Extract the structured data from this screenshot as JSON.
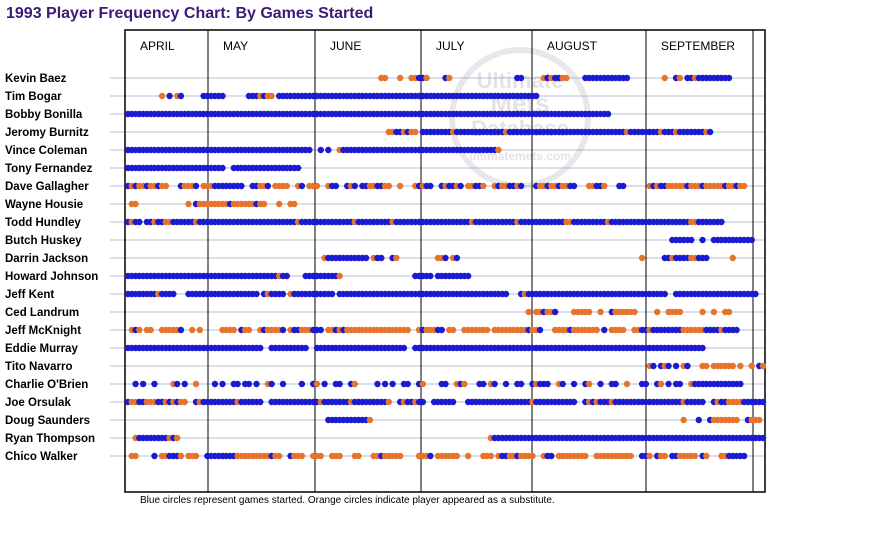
{
  "title": "1993 Player Frequency Chart: By Games Started",
  "caption": "Blue circles represent games started. Orange circles indicate player appeared as a substitute.",
  "watermark": [
    "Ultimate",
    "Mets",
    "Database",
    "ultimatemets.com"
  ],
  "colors": {
    "started": "#1a1ad0",
    "substitute": "#e8742c",
    "rowline": "#9aa6c8",
    "title": "#3b1a78"
  },
  "chart_data": {
    "type": "scatter",
    "title": "1993 Player Frequency Chart: By Games Started",
    "months": [
      "APRIL",
      "MAY",
      "JUNE",
      "JULY",
      "AUGUST",
      "SEPTEMBER"
    ],
    "legend": {
      "S": "Blue circles represent games started",
      "O": "Orange circles indicate player appeared as a substitute"
    },
    "games_total": 162,
    "players": [
      {
        "name": "Kevin Baez",
        "segments": [
          [
            67,
            "OO"
          ],
          [
            72,
            "O"
          ],
          [
            75,
            "OOBBO"
          ],
          [
            84,
            "BO"
          ],
          [
            103,
            "BB"
          ],
          [
            110,
            "OBOBBOO"
          ],
          [
            121,
            "BBBBBBBBBBBB"
          ],
          [
            142,
            "O"
          ],
          [
            145,
            "BO"
          ],
          [
            148,
            "BB"
          ],
          [
            150,
            "OBBBBBBBBB"
          ]
        ]
      },
      {
        "name": "Tim Bogar",
        "segments": [
          [
            9,
            "O"
          ],
          [
            11,
            "B"
          ],
          [
            13,
            "OB"
          ],
          [
            20,
            "BBBBBB"
          ],
          [
            32,
            "BBB"
          ],
          [
            35,
            "OBOO"
          ],
          [
            40,
            "BBBBBBBBBBBBBBBBBBBBBBBBBBBBBBBBBBBBBBBBBBBBBBBBBBBBBBBBBBBBBBBBBBBBB"
          ]
        ]
      },
      {
        "name": "Bobby Bonilla",
        "segments": [
          [
            0,
            "BBBBBBBBBBBBBBBBBBBBBBBBBBBBBBBBBBBBBBBBBBBBBBBBBBBBBBBBBBBBBBBBBBBBBBBBBBBBBBBBBBBBBBBBBBBBBBBBBBBBBBBBBBBBBBBBBBBBBBBBBBBBBBBB"
          ]
        ]
      },
      {
        "name": "Jeromy Burnitz",
        "segments": [
          [
            69,
            "OOB"
          ],
          [
            72,
            "BOBOO"
          ],
          [
            78,
            "BBBBBBBBOBBBBBBBBBBBBBOBBBBBBBBBBBBBBBBBBBBBBBBBBBBBBBOBBBBBBBBOBBBOBBBBBBBOB"
          ]
        ]
      },
      {
        "name": "Vince Coleman",
        "segments": [
          [
            0,
            "BBBBBBBBBBBBBBBBBBBBBBBBBBBBBBBBBBBBBBBBBBBBBBBBB"
          ],
          [
            51,
            "B"
          ],
          [
            53,
            "B"
          ],
          [
            56,
            "OBBBBBBBBBBBBBBBBBBBBBBBBBBBBBBBBBBBBBBBBBO"
          ]
        ]
      },
      {
        "name": "Tony Fernandez",
        "segments": [
          [
            0,
            "BBBBBBBBBBBBBBBBBBBBBBBBBB"
          ],
          [
            28,
            "BBBBBBBBBBBBBBBBBB"
          ]
        ]
      },
      {
        "name": "Dave Gallagher",
        "segments": [
          [
            0,
            "BOBOOBOOBOO"
          ],
          [
            14,
            "BOOOB"
          ],
          [
            20,
            "OOOBBBBBBBB"
          ],
          [
            33,
            "BBOOB"
          ],
          [
            39,
            "OOOO"
          ],
          [
            45,
            "OB"
          ],
          [
            48,
            "OOO"
          ],
          [
            53,
            "OBB"
          ],
          [
            58,
            "BOB"
          ],
          [
            62,
            "BBOOBBOO"
          ],
          [
            72,
            "O"
          ],
          [
            76,
            "OBOBB"
          ],
          [
            83,
            "BOBBOB"
          ],
          [
            90,
            "OOBBO"
          ],
          [
            97,
            "OBOOBBOB"
          ],
          [
            108,
            "BOOBOOBOOBB"
          ],
          [
            122,
            "OOBBO"
          ],
          [
            130,
            "BB"
          ],
          [
            138,
            "OBOBBOOOOOBOOOBOOOOOBOOBOO"
          ]
        ]
      },
      {
        "name": "Wayne Housie",
        "segments": [
          [
            1,
            "OO"
          ],
          [
            16,
            "O"
          ],
          [
            18,
            "BOOOOOOOOBOOOOOOBOO"
          ],
          [
            40,
            "O"
          ],
          [
            43,
            "OO"
          ]
        ]
      },
      {
        "name": "Todd Hundley",
        "segments": [
          [
            0,
            "BOBB"
          ],
          [
            5,
            "BBOBB"
          ],
          [
            10,
            "OOBBBBBBOBBBBBBBBBBBBBBBBBBBBBBBBBBOBBBBBBBBBBBBBBOBBBBBBBBBOBBBBBBBBBBBBBBBBBBBBOBBBBBBBBBBBOBBBBBBBBBBBBOOBBBBBBBBBOBBBBBBBBBBBBBBBBBBBBBOOBBBBBBB"
          ]
        ]
      },
      {
        "name": "Butch Huskey",
        "segments": [
          [
            144,
            "BBBBBB"
          ],
          [
            152,
            "B"
          ],
          [
            155,
            "BBBBBBBBBBB"
          ]
        ]
      },
      {
        "name": "Darrin Jackson",
        "segments": [
          [
            52,
            "OBBBBBBBBBBB"
          ],
          [
            65,
            "OBB"
          ],
          [
            70,
            "BO"
          ],
          [
            82,
            "OOB"
          ],
          [
            86,
            "OB"
          ],
          [
            136,
            "O"
          ],
          [
            142,
            "BBOBBBBOOBBB"
          ],
          [
            160,
            "O"
          ]
        ]
      },
      {
        "name": "Howard Johnson",
        "segments": [
          [
            0,
            "BBBBBBBBBBBBBBBBBBBBBBBBBBBBBBBBBBBBBBBBOBB"
          ],
          [
            47,
            "BBBBBBBBB"
          ],
          [
            56,
            "O"
          ],
          [
            76,
            "BBBBB"
          ],
          [
            82,
            "BBBBBBBBB"
          ]
        ]
      },
      {
        "name": "Jeff Kent",
        "segments": [
          [
            0,
            "BBBBBBBBOBBBB"
          ],
          [
            16,
            "BBBBBBBBBBBBBBBBBBB"
          ],
          [
            36,
            "BOBBBB"
          ],
          [
            43,
            "OBBBBBBBBBBB"
          ],
          [
            56,
            "BBBBBBBBBBBBBBBBBBBBBBBBBBBBBBBBBBBBBBBBBBBBB"
          ],
          [
            104,
            "BOBBBBBBBBBBBBBBBBBBBBBBBBBBBBBBBBBBBBB"
          ],
          [
            145,
            "BBBBBBBBBBBBBBBBBBBBBB"
          ]
        ]
      },
      {
        "name": "Ced Landrum",
        "segments": [
          [
            106,
            "O"
          ],
          [
            108,
            "OOBOOB"
          ],
          [
            118,
            "OOOOO"
          ],
          [
            125,
            "O"
          ],
          [
            128,
            "BOOOOOO"
          ],
          [
            140,
            "O"
          ],
          [
            143,
            "OOOO"
          ],
          [
            152,
            "O"
          ],
          [
            155,
            "O"
          ],
          [
            158,
            "OO"
          ]
        ]
      },
      {
        "name": "Jeff McKnight",
        "segments": [
          [
            1,
            "OBO"
          ],
          [
            5,
            "OO"
          ],
          [
            9,
            "OOOOOB"
          ],
          [
            17,
            "O"
          ],
          [
            19,
            "O"
          ],
          [
            25,
            "OOOO"
          ],
          [
            30,
            "BOO"
          ],
          [
            35,
            "OBOOOOB"
          ],
          [
            43,
            "OBBOOOBBB"
          ],
          [
            53,
            "OOBOBOOOOOOOOOOOOOOOOO"
          ],
          [
            77,
            "OBOOOBB"
          ],
          [
            85,
            "OO"
          ],
          [
            89,
            "OOOOOOO"
          ],
          [
            97,
            "OOOOOOOOOBOOB"
          ],
          [
            113,
            "OOOOBOOOOOOO"
          ],
          [
            126,
            "B"
          ],
          [
            128,
            "OOOO"
          ],
          [
            134,
            "OOBBOBBBBBBBBOOOOOOBBBBOBBBB"
          ]
        ]
      },
      {
        "name": "Eddie Murray",
        "segments": [
          [
            0,
            "BBBBBBBBBBBBBBBBBBBBBBBBBBBBBBBBBBBB"
          ],
          [
            38,
            "BBBBBBBBBB"
          ],
          [
            50,
            "BBBBBBBBBBBBBBBBBBBBBBBB"
          ],
          [
            76,
            "BBBBBBBBBBBBBBBBBBBBBBBBBBBBBBBBBBBBBBBBBBBBBBBBBBBBBBBBBBBBBBBBBBBBBBBBBBBBB"
          ]
        ]
      },
      {
        "name": "Tito Navarro",
        "segments": [
          [
            138,
            "OB"
          ],
          [
            141,
            "BOB"
          ],
          [
            145,
            "B"
          ],
          [
            147,
            "OB"
          ],
          [
            152,
            "OO"
          ],
          [
            155,
            "OOOOOO"
          ],
          [
            162,
            "O"
          ],
          [
            165,
            "O"
          ],
          [
            167,
            "BO"
          ]
        ]
      },
      {
        "name": "Charlie O'Brien",
        "segments": [
          [
            2,
            "B"
          ],
          [
            4,
            "B"
          ],
          [
            7,
            "B"
          ],
          [
            12,
            "OB"
          ],
          [
            15,
            "B"
          ],
          [
            18,
            "O"
          ],
          [
            23,
            "B"
          ],
          [
            25,
            "B"
          ],
          [
            28,
            "BB"
          ],
          [
            31,
            "BB"
          ],
          [
            34,
            "B"
          ],
          [
            37,
            "OB"
          ],
          [
            41,
            "B"
          ],
          [
            46,
            "B"
          ],
          [
            49,
            "BO"
          ],
          [
            52,
            "B"
          ],
          [
            55,
            "BB"
          ],
          [
            59,
            "BO"
          ],
          [
            66,
            "B"
          ],
          [
            68,
            "B"
          ],
          [
            70,
            "B"
          ],
          [
            73,
            "BB"
          ],
          [
            77,
            "BO"
          ],
          [
            83,
            "BB"
          ],
          [
            87,
            "OBO"
          ],
          [
            93,
            "BB"
          ],
          [
            96,
            "OB"
          ],
          [
            100,
            "B"
          ],
          [
            103,
            "BB"
          ],
          [
            107,
            "BOBBB"
          ],
          [
            114,
            "OB"
          ],
          [
            118,
            "B"
          ],
          [
            121,
            "BO"
          ],
          [
            125,
            "B"
          ],
          [
            128,
            "BB"
          ],
          [
            132,
            "O"
          ],
          [
            136,
            "BB"
          ],
          [
            140,
            "BO"
          ],
          [
            143,
            "B"
          ],
          [
            145,
            "BB"
          ],
          [
            149,
            "OBBBBBBBBBBBBB"
          ]
        ]
      },
      {
        "name": "Joe Orsulak",
        "segments": [
          [
            0,
            "BOOBBOOOBBOBOBOO"
          ],
          [
            18,
            "BOBBBBBBBBBOBBBBBB"
          ],
          [
            38,
            "BBBBBBBBBBBBBOBBBBBBBOBBBBBBBBBO"
          ],
          [
            72,
            "BOBBOBB"
          ],
          [
            81,
            "BBBBBB"
          ],
          [
            90,
            "BBBBBBBBBBBBBBBBBOBBBBBBBBBBB"
          ],
          [
            121,
            "BOBOBBBOBBBBBBBBBBBBBBBBBBOBBBBB"
          ],
          [
            155,
            "BOBBOOOOBBBBBB"
          ]
        ]
      },
      {
        "name": "Doug Saunders",
        "segments": [
          [
            53,
            "BBBBBBBBBBBO"
          ],
          [
            147,
            "O"
          ],
          [
            151,
            "B"
          ],
          [
            154,
            "BOOOOOOO"
          ],
          [
            164,
            "BOOO"
          ]
        ]
      },
      {
        "name": "Ryan Thompson",
        "segments": [
          [
            2,
            "OBBBBBBBBOBO"
          ],
          [
            96,
            "OBBBBBBBBBBBBBBBBBBBBBBBBBBBBBBBBBBBBBBBBBBBBBBBBBBBBBBBBBBBBBBBBBBBBBBBBB"
          ]
        ]
      },
      {
        "name": "Chico Walker",
        "segments": [
          [
            1,
            "OO"
          ],
          [
            7,
            "B"
          ],
          [
            9,
            "OOBBBO"
          ],
          [
            16,
            "OOO"
          ],
          [
            21,
            "BBBBBBBBOOOOOOOOOBOO"
          ],
          [
            43,
            "BOOO"
          ],
          [
            49,
            "OOO"
          ],
          [
            54,
            "OOO"
          ],
          [
            60,
            "OO"
          ],
          [
            65,
            "OOBOOOOO"
          ],
          [
            77,
            "OOOB"
          ],
          [
            82,
            "OOOOOO"
          ],
          [
            90,
            "O"
          ],
          [
            94,
            "OOO"
          ],
          [
            98,
            "OBBOOBOOOO"
          ],
          [
            110,
            "OBB"
          ],
          [
            114,
            "OOOOOOOO"
          ],
          [
            124,
            "OOOOOOOOOO"
          ],
          [
            136,
            "BBO"
          ],
          [
            140,
            "BOO"
          ],
          [
            144,
            "BBOOOOO"
          ],
          [
            152,
            "BO"
          ],
          [
            157,
            "OOBBBBB"
          ]
        ]
      }
    ]
  }
}
